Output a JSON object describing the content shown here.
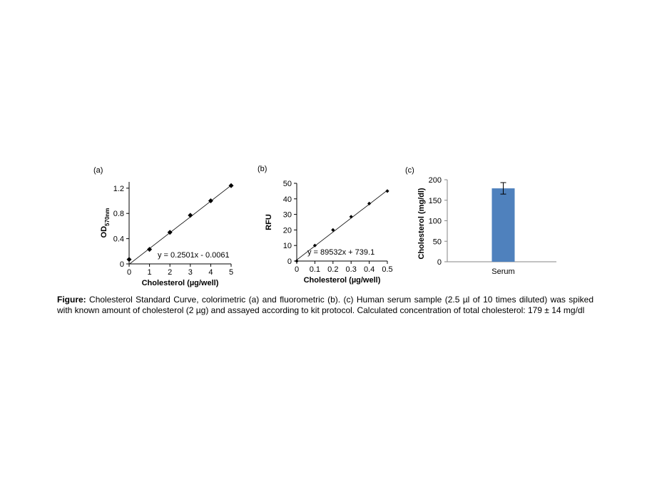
{
  "chart_data": [
    {
      "type": "scatter",
      "panel": "(a)",
      "xlabel": "Cholesterol (µg/well)",
      "ylabel": "OD",
      "ylabel_sub": "570nm",
      "x": [
        0,
        1,
        2,
        3,
        4,
        5
      ],
      "y": [
        0.07,
        0.23,
        0.5,
        0.77,
        1.0,
        1.24
      ],
      "xlim": [
        0,
        5
      ],
      "ylim": [
        0,
        1.3
      ],
      "xticks": [
        "0",
        "1",
        "2",
        "3",
        "4",
        "5"
      ],
      "yticks": [
        "0",
        "0.4",
        "0.8",
        "1.2"
      ],
      "ytick_values": [
        0,
        0.4,
        0.8,
        1.2
      ],
      "trendline": {
        "slope": 0.2501,
        "intercept": -0.0061,
        "label": "y = 0.2501x - 0.0061"
      },
      "grid": false
    },
    {
      "type": "scatter",
      "panel": "(b)",
      "xlabel": "Cholesterol (µg/well)",
      "ylabel": "RFU",
      "x": [
        0,
        0.1,
        0.2,
        0.3,
        0.4,
        0.5
      ],
      "y": [
        0,
        10,
        20,
        28.5,
        37,
        45
      ],
      "xlim": [
        0,
        0.5
      ],
      "ylim": [
        0,
        50
      ],
      "xticks": [
        "0",
        "0.1",
        "0.2",
        "0.3",
        "0.4",
        "0.5"
      ],
      "yticks": [
        "0",
        "10",
        "20",
        "30",
        "40",
        "50"
      ],
      "ytick_values": [
        0,
        10,
        20,
        30,
        40,
        50
      ],
      "trendline": {
        "slope": 89.532,
        "intercept": 0.7391,
        "label": "y = 89532x + 739.1"
      },
      "grid": false
    },
    {
      "type": "bar",
      "panel": "(c)",
      "categories": [
        "Serum"
      ],
      "values": [
        179
      ],
      "error": [
        14
      ],
      "ylabel": "Cholesterol (mg/dl)",
      "ylim": [
        0,
        200
      ],
      "yticks": [
        "0",
        "50",
        "100",
        "150",
        "200"
      ],
      "ytick_values": [
        0,
        50,
        100,
        150,
        200
      ],
      "bar_color": "#4f81bd",
      "grid": false
    }
  ],
  "caption": {
    "bold": "Figure:",
    "text": " Cholesterol Standard Curve, colorimetric (a) and fluorometric (b). (c) Human serum sample (2.5 µl of 10 times diluted) was spiked with known amount of cholesterol (2 µg) and assayed according to kit protocol. Calculated concentration of total cholesterol: 179 ± 14 mg/dl"
  }
}
